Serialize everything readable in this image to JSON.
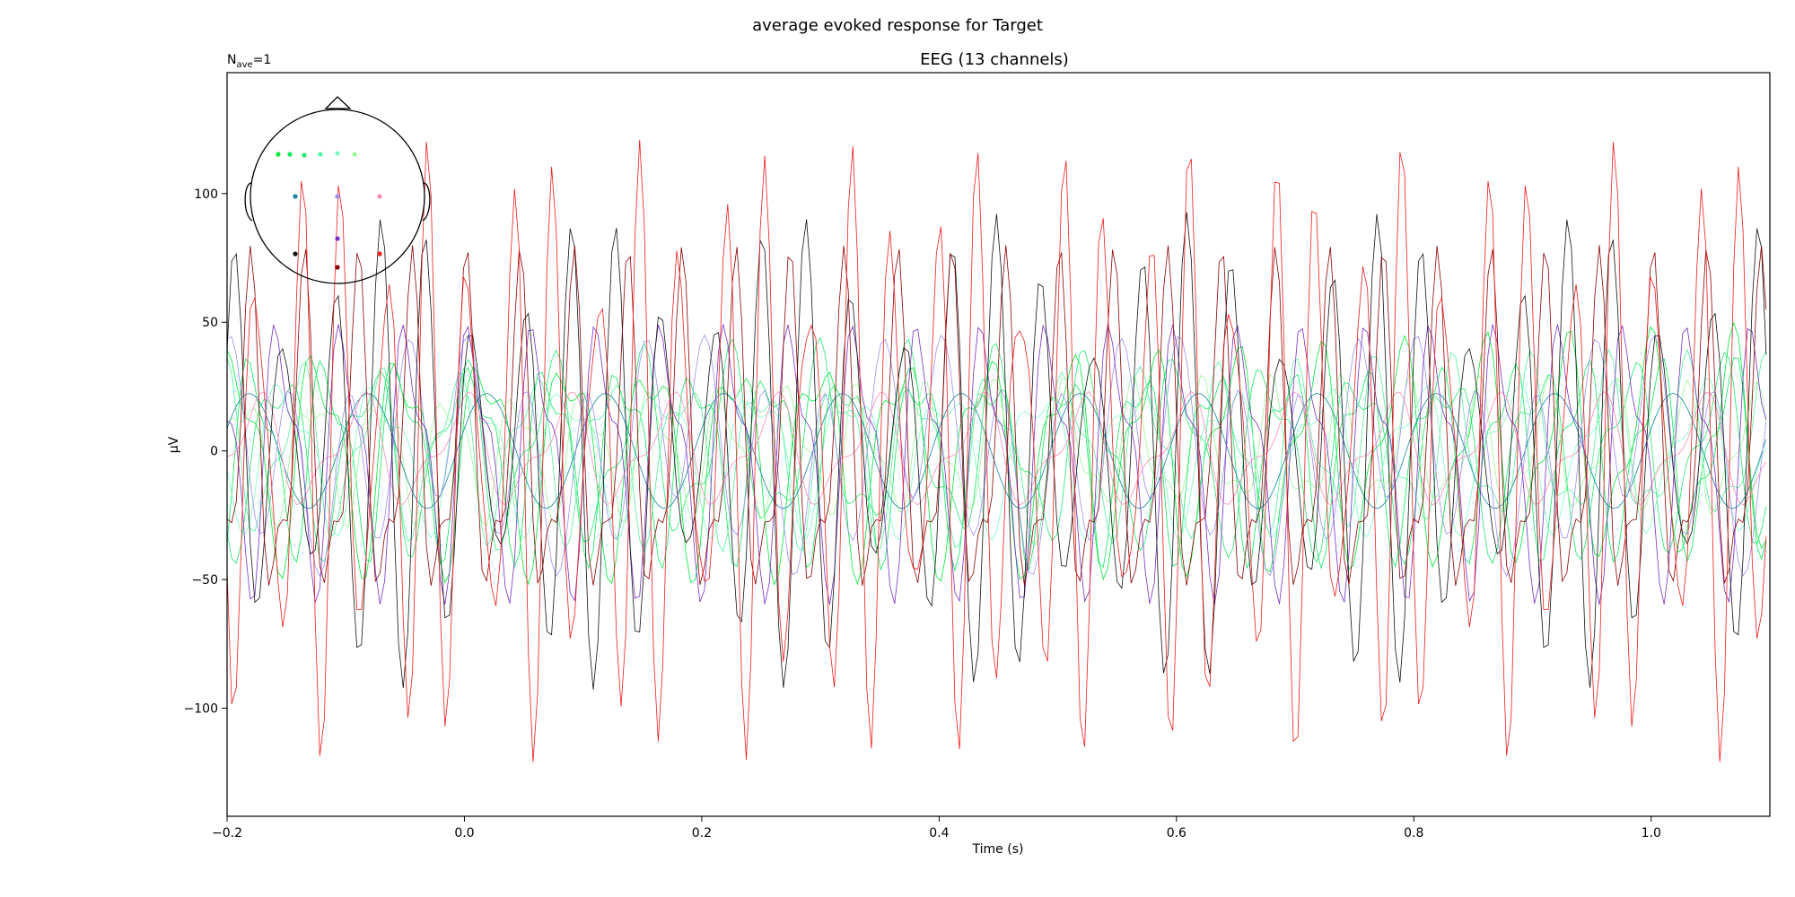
{
  "figure": {
    "suptitle": "average evoked response for Target",
    "nave_label": "N",
    "nave_sub": "ave",
    "nave_value": "=1"
  },
  "chart_data": {
    "type": "line",
    "title": "EEG (13 channels)",
    "xlabel": "Time (s)",
    "ylabel": "µV",
    "xlim": [
      -0.2,
      1.1
    ],
    "ylim": [
      -142,
      147
    ],
    "xticks": [
      -0.2,
      0.0,
      0.2,
      0.4,
      0.6,
      0.8,
      1.0
    ],
    "xtick_labels": [
      "−0.2",
      "0.0",
      "0.2",
      "0.4",
      "0.6",
      "0.8",
      "1.0"
    ],
    "yticks": [
      -100,
      -50,
      0,
      50,
      100
    ],
    "ytick_labels": [
      "−100",
      "−50",
      "0",
      "50",
      "100"
    ],
    "grid": false,
    "sample_rate_hz": 256,
    "series": [
      {
        "color": "#00e83a",
        "amplitude": 45,
        "components": [
          [
            14.3,
            0.0
          ],
          [
            29.0,
            1.1
          ]
        ]
      },
      {
        "color": "#10e860",
        "amplitude": 40,
        "components": [
          [
            16.1,
            0.6
          ],
          [
            32.5,
            2.0
          ]
        ]
      },
      {
        "color": "#22e66f",
        "amplitude": 38,
        "components": [
          [
            13.2,
            1.9
          ],
          [
            27.4,
            0.3
          ]
        ]
      },
      {
        "color": "#55f0a0",
        "amplitude": 34,
        "components": [
          [
            15.4,
            2.5
          ],
          [
            30.1,
            1.4
          ]
        ]
      },
      {
        "color": "#7cfcc4",
        "amplitude": 30,
        "components": [
          [
            12.6,
            0.9
          ],
          [
            25.5,
            2.7
          ]
        ]
      },
      {
        "color": "#9cf59a",
        "amplitude": 26,
        "components": [
          [
            17.3,
            3.0
          ],
          [
            34.0,
            0.8
          ]
        ]
      },
      {
        "color": "#1486a0",
        "amplitude": 28,
        "components": [
          [
            10.0,
            0.4
          ]
        ]
      },
      {
        "color": "#9e8ff0",
        "amplitude": 42,
        "components": [
          [
            20.0,
            1.2
          ],
          [
            5.0,
            2.2
          ]
        ]
      },
      {
        "color": "#fb8cb8",
        "amplitude": 22,
        "components": [
          [
            11.5,
            1.7
          ],
          [
            23.0,
            0.5
          ]
        ]
      },
      {
        "color": "#7a2fc4",
        "amplitude": 55,
        "components": [
          [
            18.5,
            0.7
          ],
          [
            37.0,
            1.9
          ]
        ]
      },
      {
        "color": "#111111",
        "amplitude": 80,
        "components": [
          [
            25.0,
            0.2
          ],
          [
            31.0,
            2.4
          ]
        ]
      },
      {
        "color": "#8b0000",
        "amplitude": 70,
        "components": [
          [
            22.0,
            1.5
          ],
          [
            44.0,
            0.9
          ]
        ]
      },
      {
        "color": "#ee1c1c",
        "amplitude": 105,
        "components": [
          [
            28.0,
            0.8
          ],
          [
            39.0,
            2.9
          ]
        ]
      }
    ]
  },
  "head_inset": {
    "sensors": [
      {
        "color": "#00e83a"
      },
      {
        "color": "#10e860"
      },
      {
        "color": "#22e66f"
      },
      {
        "color": "#55f0a0"
      },
      {
        "color": "#7cfcc4"
      },
      {
        "color": "#9cf59a"
      },
      {
        "color": "#1486a0"
      },
      {
        "color": "#9e8ff0"
      },
      {
        "color": "#fb8cb8"
      },
      {
        "color": "#7a2fc4"
      },
      {
        "color": "#111111"
      },
      {
        "color": "#8b0000"
      },
      {
        "color": "#ee1c1c"
      }
    ]
  }
}
